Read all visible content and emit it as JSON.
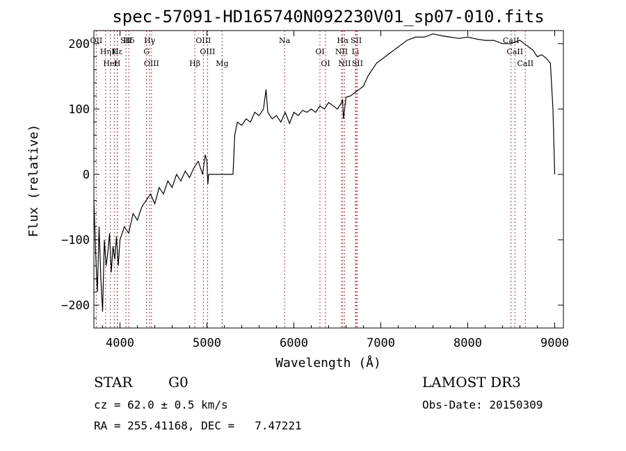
{
  "chart_data": {
    "type": "line",
    "title": "spec-57091-HD165740N092230V01_sp07-010.fits",
    "xlabel": "Wavelength (Å)",
    "ylabel": "Flux (relative)",
    "xlim": [
      3700,
      9100
    ],
    "ylim": [
      -235,
      220
    ],
    "x_ticks": [
      4000,
      5000,
      6000,
      7000,
      8000,
      9000
    ],
    "x_tick_labels": [
      "4000",
      "5000",
      "6000",
      "7000",
      "8000",
      "9000"
    ],
    "y_ticks": [
      -200,
      -100,
      0,
      100,
      200
    ],
    "y_tick_labels": [
      "−200",
      "−100",
      "0",
      "100",
      "200"
    ],
    "series": [
      {
        "name": "flux",
        "x": [
          3700,
          3720,
          3740,
          3760,
          3780,
          3800,
          3820,
          3840,
          3860,
          3880,
          3900,
          3920,
          3940,
          3960,
          3980,
          4000,
          4050,
          4100,
          4150,
          4200,
          4250,
          4300,
          4350,
          4400,
          4450,
          4500,
          4550,
          4600,
          4650,
          4700,
          4750,
          4800,
          4850,
          4900,
          4950,
          4980,
          5000,
          5010,
          5020,
          5100,
          5200,
          5300,
          5320,
          5350,
          5400,
          5450,
          5500,
          5550,
          5600,
          5650,
          5680,
          5700,
          5750,
          5800,
          5850,
          5900,
          5950,
          6000,
          6050,
          6100,
          6150,
          6200,
          6250,
          6300,
          6350,
          6400,
          6450,
          6500,
          6550,
          6560,
          6570,
          6600,
          6650,
          6700,
          6750,
          6800,
          6850,
          6900,
          6950,
          7000,
          7050,
          7100,
          7150,
          7200,
          7250,
          7300,
          7400,
          7500,
          7600,
          7700,
          7800,
          7900,
          8000,
          8100,
          8200,
          8300,
          8400,
          8500,
          8550,
          8600,
          8650,
          8700,
          8750,
          8800,
          8850,
          8900,
          8950,
          8980,
          9000
        ],
        "y": [
          -40,
          -120,
          -180,
          -80,
          -160,
          -210,
          -100,
          -140,
          -120,
          -90,
          -150,
          -110,
          -130,
          -95,
          -140,
          -100,
          -80,
          -90,
          -60,
          -70,
          -50,
          -40,
          -30,
          -45,
          -20,
          -30,
          -10,
          -20,
          0,
          -10,
          5,
          -5,
          10,
          20,
          0,
          30,
          20,
          -15,
          0,
          0,
          0,
          0,
          60,
          80,
          75,
          85,
          80,
          95,
          90,
          100,
          130,
          95,
          85,
          90,
          80,
          95,
          78,
          95,
          90,
          98,
          95,
          100,
          95,
          105,
          100,
          110,
          105,
          100,
          110,
          115,
          85,
          118,
          120,
          125,
          130,
          135,
          150,
          160,
          170,
          175,
          180,
          185,
          190,
          195,
          200,
          205,
          210,
          210,
          215,
          212,
          210,
          208,
          210,
          207,
          205,
          205,
          200,
          200,
          203,
          205,
          200,
          195,
          190,
          180,
          183,
          178,
          170,
          100,
          0
        ]
      }
    ],
    "lines": [
      {
        "label": "Hδ",
        "x": 4102
      },
      {
        "label": "K",
        "x": 3934
      },
      {
        "label": "H",
        "x": 3968
      },
      {
        "label": "OII",
        "x": 3727
      },
      {
        "label": "Hε",
        "x": 3970
      },
      {
        "label": "HeI",
        "x": 3889
      },
      {
        "label": "SII",
        "x": 4068
      },
      {
        "label": "Hη",
        "x": 3835
      },
      {
        "label": "OIII",
        "x": 4363
      },
      {
        "label": "Hγ",
        "x": 4341
      },
      {
        "label": "G",
        "x": 4305
      },
      {
        "label": "Hβ",
        "x": 4861
      },
      {
        "label": "OIII",
        "x": 4959
      },
      {
        "label": "OIII",
        "x": 5007
      },
      {
        "label": "Mg",
        "x": 5175
      },
      {
        "label": "Na",
        "x": 5893
      },
      {
        "label": "OI",
        "x": 6300
      },
      {
        "label": "OI",
        "x": 6364
      },
      {
        "label": "Hα",
        "x": 6563
      },
      {
        "label": "NII",
        "x": 6548
      },
      {
        "label": "NII",
        "x": 6583
      },
      {
        "label": "SII",
        "x": 6717
      },
      {
        "label": "Li",
        "x": 6708
      },
      {
        "label": "SII",
        "x": 6731
      },
      {
        "label": "CaII",
        "x": 8498
      },
      {
        "label": "CaII",
        "x": 8542
      },
      {
        "label": "CaII",
        "x": 8662
      }
    ]
  },
  "footer": {
    "object_type": "STAR",
    "subclass": "G0",
    "survey": "LAMOST DR3",
    "redshift": "cz = 62.0 ± 0.5 km/s",
    "obs_date": "Obs-Date: 20150309",
    "coords": "RA = 255.41168, DEC =   7.47221"
  }
}
